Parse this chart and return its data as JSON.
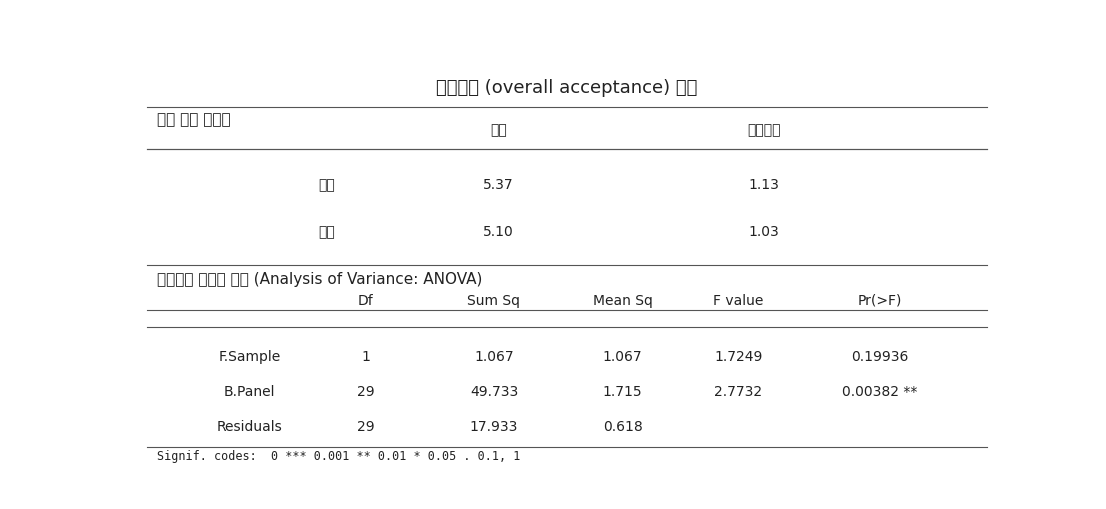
{
  "title": "종합기호 (overall acceptance) 분석",
  "section1_label": "평균 요약 테이블",
  "section2_label": "기호평균 유의차 검정 (Analysis of Variance: ANOVA)",
  "summary_headers": [
    "",
    "평균",
    "표준편차"
  ],
  "summary_rows": [
    [
      "기본",
      "5.37",
      "1.13"
    ],
    [
      "미강",
      "5.10",
      "1.03"
    ]
  ],
  "anova_headers": [
    "",
    "Df",
    "Sum Sq",
    "Mean Sq",
    "F value",
    "Pr(>F)"
  ],
  "anova_rows": [
    [
      "F.Sample",
      "1",
      "1.067",
      "1.067",
      "1.7249",
      "0.19936"
    ],
    [
      "B.Panel",
      "29",
      "49.733",
      "1.715",
      "2.7732",
      "0.00382 **"
    ],
    [
      "Residuals",
      "29",
      "17.933",
      "0.618",
      "",
      ""
    ]
  ],
  "signif_note": "Signif. codes:  0 *** 0.001 ** 0.01 * 0.05 . 0.1, 1",
  "bg_color": "#ffffff",
  "text_color": "#222222",
  "line_color": "#555555",
  "font_size_title": 13,
  "font_size_section": 11,
  "font_size_table": 10,
  "font_size_note": 8.5
}
